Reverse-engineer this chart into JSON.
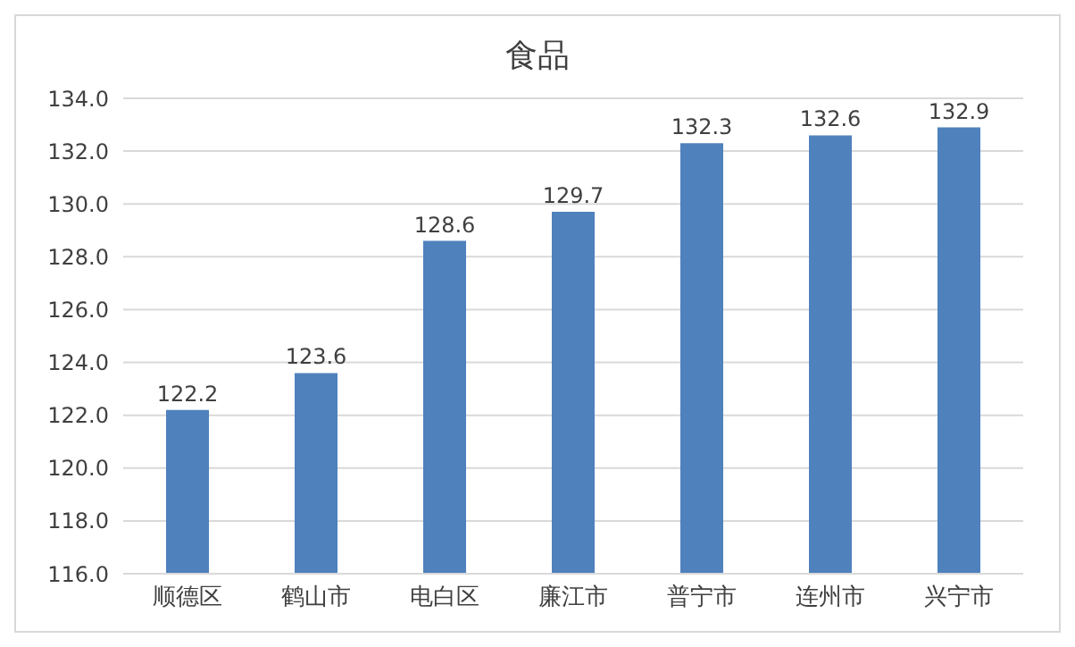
{
  "chart_data": {
    "type": "bar",
    "title": "食品",
    "categories": [
      "顺德区",
      "鹤山市",
      "电白区",
      "廉江市",
      "普宁市",
      "连州市",
      "兴宁市"
    ],
    "values": [
      122.2,
      123.6,
      128.6,
      129.7,
      132.3,
      132.6,
      132.9
    ],
    "color": "#4f81bd",
    "ylim": [
      116,
      134
    ],
    "yticks": [
      {
        "value": 116,
        "label": "116.0"
      },
      {
        "value": 118,
        "label": "118.0"
      },
      {
        "value": 120,
        "label": "120.0"
      },
      {
        "value": 122,
        "label": "122.0"
      },
      {
        "value": 124,
        "label": "124.0"
      },
      {
        "value": 126,
        "label": "126.0"
      },
      {
        "value": 128,
        "label": "128.0"
      },
      {
        "value": 130,
        "label": "130.0"
      },
      {
        "value": 132,
        "label": "132.0"
      },
      {
        "value": 134,
        "label": "134.0"
      }
    ],
    "grid": "y",
    "data_labels": true
  }
}
